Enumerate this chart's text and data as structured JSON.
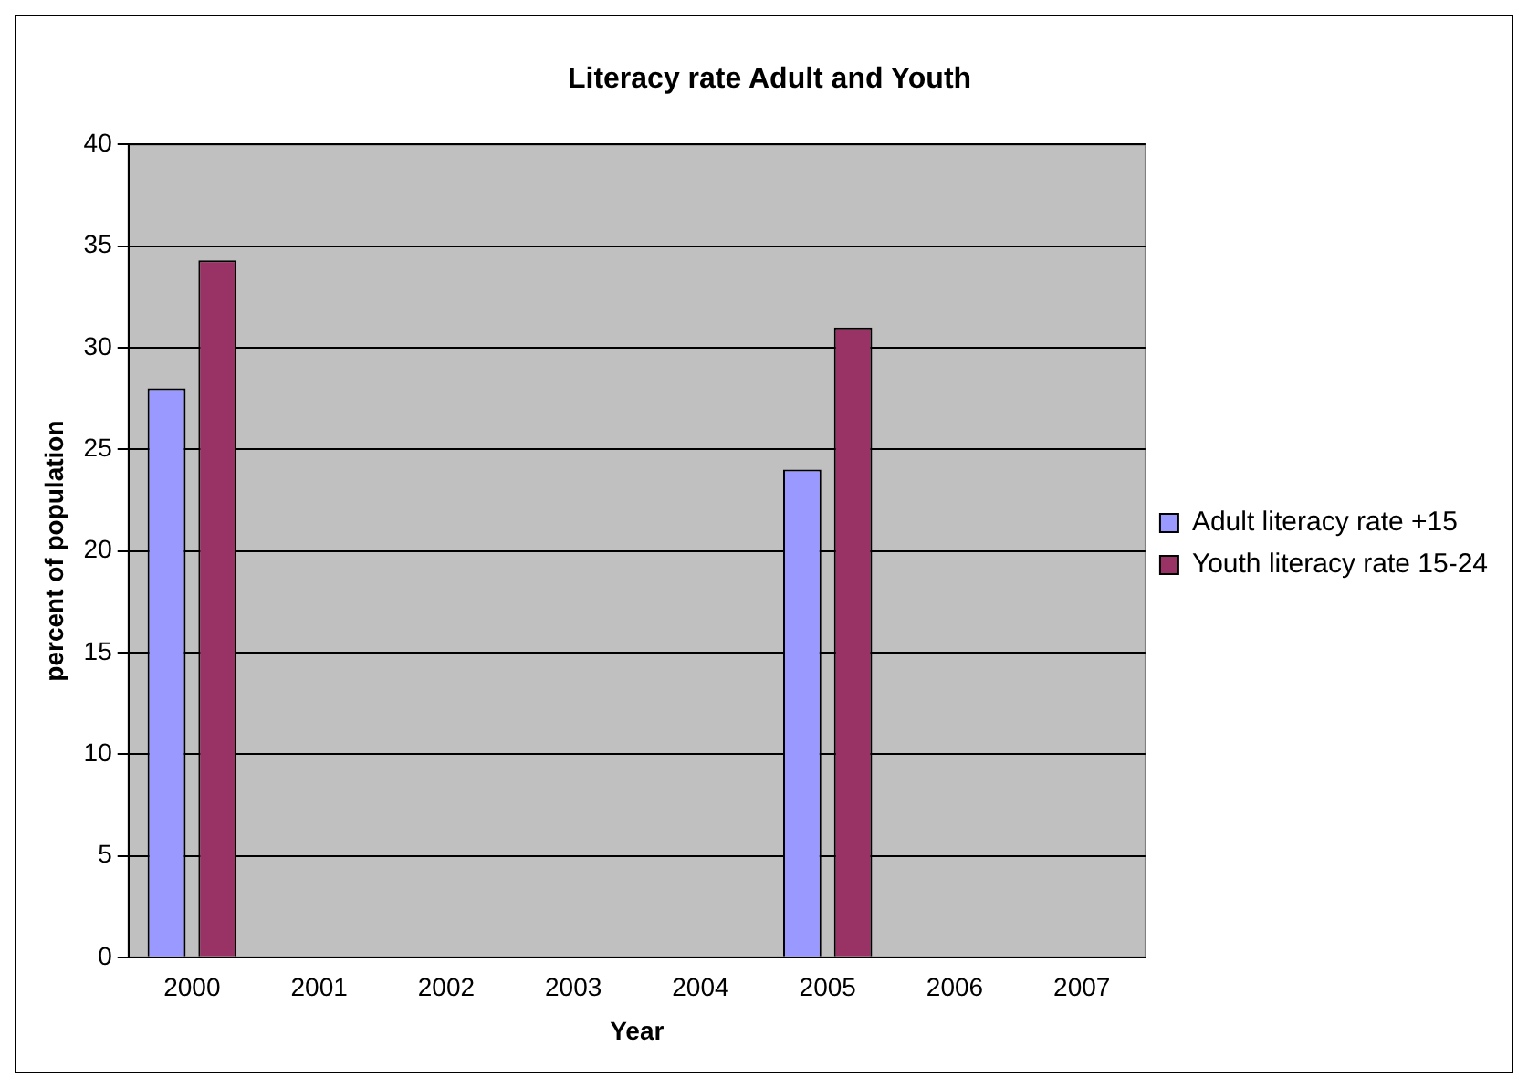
{
  "chart_data": {
    "type": "bar",
    "title": "Literacy rate Adult and Youth",
    "xlabel": "Year",
    "ylabel": "percent of population",
    "categories": [
      "2000",
      "2001",
      "2002",
      "2003",
      "2004",
      "2005",
      "2006",
      "2007"
    ],
    "series": [
      {
        "name": "Adult literacy rate +15",
        "color": "#9999ff",
        "values": [
          28,
          null,
          null,
          null,
          null,
          24,
          null,
          null
        ]
      },
      {
        "name": "Youth literacy rate 15-24",
        "color": "#993366",
        "values": [
          34.3,
          null,
          null,
          null,
          null,
          31,
          null,
          null
        ]
      }
    ],
    "ylim": [
      0,
      40
    ],
    "yticks": [
      0,
      5,
      10,
      15,
      20,
      25,
      30,
      35,
      40
    ],
    "grid": "y",
    "legend": "right"
  }
}
